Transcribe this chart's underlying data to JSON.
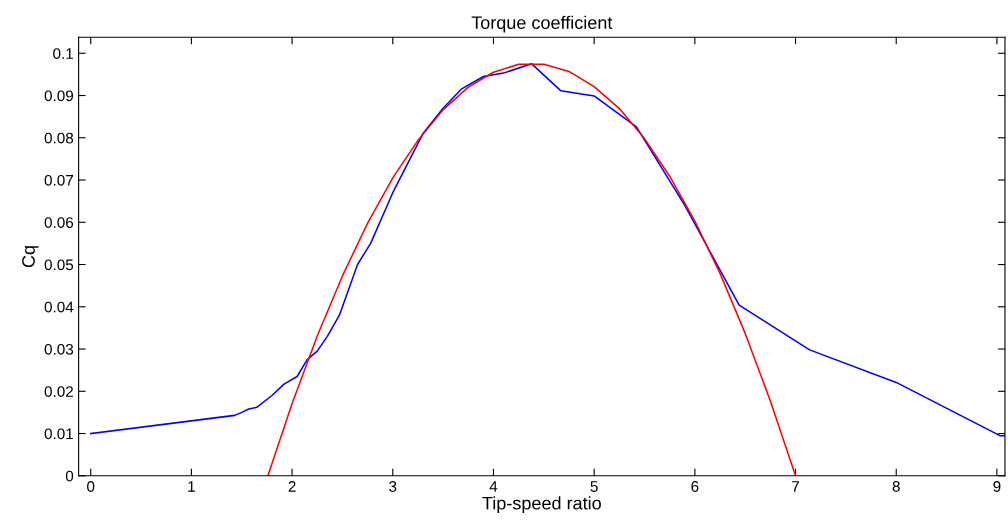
{
  "chart_data": {
    "type": "line",
    "title": "Torque coefficient",
    "xlabel": "Tip-speed ratio",
    "ylabel": "Cq",
    "xlim": [
      -0.12,
      9.08
    ],
    "xticks": [
      0,
      1,
      2,
      3,
      4,
      5,
      6,
      7,
      8,
      9
    ],
    "ylim": [
      0,
      0.1038
    ],
    "yticks": [
      0,
      0.01,
      0.02,
      0.03,
      0.04,
      0.05,
      0.06,
      0.07,
      0.08,
      0.09,
      0.1
    ],
    "grid": false,
    "series": [
      {
        "color": "#0000ff",
        "x": [
          0,
          1.43,
          1.5,
          1.57,
          1.65,
          1.8,
          1.92,
          2.05,
          2.15,
          2.25,
          2.35,
          2.47,
          2.65,
          2.78,
          3.0,
          3.3,
          3.5,
          3.68,
          3.9,
          4.1,
          4.38,
          4.67,
          5.0,
          5.42,
          5.9,
          6.44,
          7.14,
          8.0,
          9.03,
          9.08
        ],
        "values": [
          0.01,
          0.0143,
          0.015,
          0.0158,
          0.0162,
          0.019,
          0.0217,
          0.0235,
          0.0275,
          0.0295,
          0.033,
          0.038,
          0.05,
          0.055,
          0.067,
          0.081,
          0.087,
          0.0915,
          0.0945,
          0.0953,
          0.0975,
          0.0911,
          0.0899,
          0.0826,
          0.064,
          0.0404,
          0.0298,
          0.0221,
          0.0095,
          0.0095
        ]
      },
      {
        "color": "#ff0000",
        "x": [
          1.76,
          2.0,
          2.25,
          2.5,
          2.75,
          3.0,
          3.25,
          3.5,
          3.75,
          4.0,
          4.25,
          4.5,
          4.75,
          5.0,
          5.25,
          5.5,
          5.75,
          6.0,
          6.25,
          6.5,
          6.75,
          7.0
        ],
        "values": [
          0,
          0.0171,
          0.0331,
          0.0473,
          0.0598,
          0.0705,
          0.0794,
          0.0866,
          0.092,
          0.0955,
          0.0974,
          0.0974,
          0.0957,
          0.0921,
          0.0869,
          0.0798,
          0.0709,
          0.0603,
          0.0479,
          0.0337,
          0.0177,
          0
        ]
      }
    ]
  }
}
